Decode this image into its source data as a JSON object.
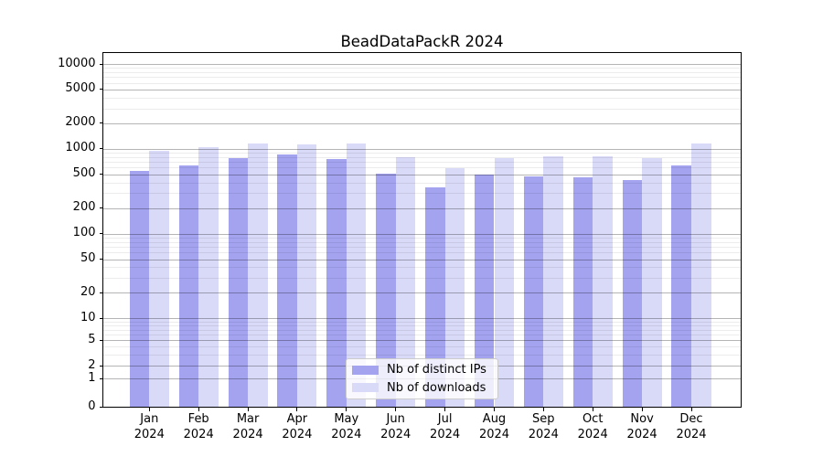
{
  "chart_data": {
    "type": "bar",
    "title": "BeadDataPackR 2024",
    "categories": [
      "Jan",
      "Feb",
      "Mar",
      "Apr",
      "May",
      "Jun",
      "Jul",
      "Aug",
      "Sep",
      "Oct",
      "Nov",
      "Dec"
    ],
    "category_year": "2024",
    "series": [
      {
        "name": "Nb of distinct IPs",
        "color": "#a3a3f0",
        "values": [
          555,
          630,
          785,
          860,
          765,
          510,
          347,
          495,
          475,
          460,
          430,
          634
        ]
      },
      {
        "name": "Nb of downloads",
        "color": "#d9d9f8",
        "values": [
          955,
          1040,
          1150,
          1115,
          1145,
          790,
          595,
          780,
          815,
          810,
          780,
          1150
        ]
      }
    ],
    "yscale": "symlog",
    "ylim": [
      0,
      14000
    ],
    "y_ticks": [
      {
        "value": 10000,
        "label": "10000"
      },
      {
        "value": 5000,
        "label": "5000"
      },
      {
        "value": 2000,
        "label": "2000"
      },
      {
        "value": 1000,
        "label": "1000"
      },
      {
        "value": 500,
        "label": "500"
      },
      {
        "value": 200,
        "label": "200"
      },
      {
        "value": 100,
        "label": "100"
      },
      {
        "value": 50,
        "label": "50"
      },
      {
        "value": 20,
        "label": "20"
      },
      {
        "value": 10,
        "label": "10"
      },
      {
        "value": 5,
        "label": "5"
      },
      {
        "value": 2,
        "label": "2"
      },
      {
        "value": 1,
        "label": "1"
      },
      {
        "value": 0,
        "label": "0"
      }
    ],
    "grid": true,
    "legend_position": "lower center"
  }
}
